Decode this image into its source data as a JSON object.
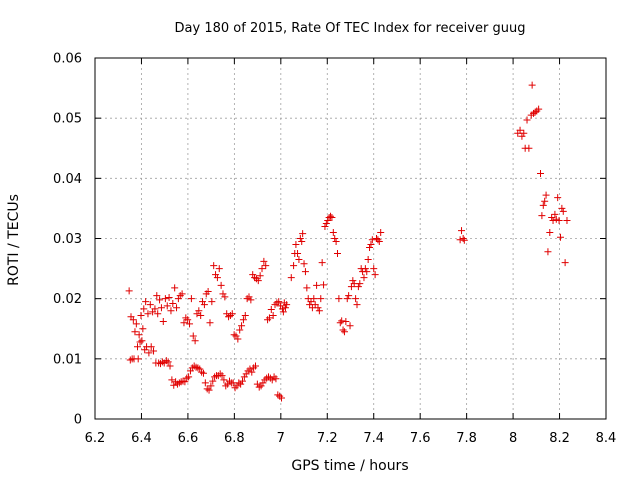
{
  "chart_data": {
    "type": "scatter",
    "title": "Day 180 of 2015, Rate Of TEC Index for receiver guug",
    "xlabel": "GPS time / hours",
    "ylabel": "ROTI / TECUs",
    "xlim": [
      6.2,
      8.4
    ],
    "ylim": [
      0,
      0.06
    ],
    "xticks": [
      "6.2",
      "6.4",
      "6.6",
      "6.8",
      "7",
      "7.2",
      "7.4",
      "7.6",
      "7.8",
      "8",
      "8.2",
      "8.4"
    ],
    "yticks": [
      "0",
      "0.01",
      "0.02",
      "0.03",
      "0.04",
      "0.05",
      "0.06"
    ],
    "grid": true,
    "marker": "plus",
    "color": "#e00000",
    "points": [
      [
        6.347,
        0.0213
      ],
      [
        6.352,
        0.0098
      ],
      [
        6.355,
        0.017
      ],
      [
        6.36,
        0.01
      ],
      [
        6.365,
        0.0165
      ],
      [
        6.368,
        0.01
      ],
      [
        6.372,
        0.0145
      ],
      [
        6.378,
        0.0158
      ],
      [
        6.383,
        0.012
      ],
      [
        6.386,
        0.01
      ],
      [
        6.39,
        0.014
      ],
      [
        6.394,
        0.0128
      ],
      [
        6.398,
        0.0172
      ],
      [
        6.402,
        0.013
      ],
      [
        6.406,
        0.015
      ],
      [
        6.41,
        0.0183
      ],
      [
        6.414,
        0.0115
      ],
      [
        6.418,
        0.0195
      ],
      [
        6.422,
        0.012
      ],
      [
        6.428,
        0.0175
      ],
      [
        6.432,
        0.011
      ],
      [
        6.438,
        0.019
      ],
      [
        6.442,
        0.012
      ],
      [
        6.448,
        0.0178
      ],
      [
        6.452,
        0.0113
      ],
      [
        6.458,
        0.0183
      ],
      [
        6.462,
        0.0093
      ],
      [
        6.466,
        0.0205
      ],
      [
        6.47,
        0.0175
      ],
      [
        6.474,
        0.0093
      ],
      [
        6.478,
        0.0198
      ],
      [
        6.482,
        0.0092
      ],
      [
        6.486,
        0.0185
      ],
      [
        6.49,
        0.0095
      ],
      [
        6.494,
        0.0162
      ],
      [
        6.498,
        0.0093
      ],
      [
        6.503,
        0.02
      ],
      [
        6.507,
        0.0097
      ],
      [
        6.511,
        0.0188
      ],
      [
        6.515,
        0.0095
      ],
      [
        6.519,
        0.0202
      ],
      [
        6.523,
        0.0088
      ],
      [
        6.527,
        0.018
      ],
      [
        6.531,
        0.0065
      ],
      [
        6.535,
        0.0192
      ],
      [
        6.539,
        0.0056
      ],
      [
        6.543,
        0.0218
      ],
      [
        6.547,
        0.0062
      ],
      [
        6.551,
        0.0185
      ],
      [
        6.555,
        0.0058
      ],
      [
        6.559,
        0.02
      ],
      [
        6.563,
        0.006
      ],
      [
        6.567,
        0.0205
      ],
      [
        6.571,
        0.0062
      ],
      [
        6.575,
        0.0208
      ],
      [
        6.579,
        0.0063
      ],
      [
        6.583,
        0.016
      ],
      [
        6.587,
        0.0062
      ],
      [
        6.591,
        0.0168
      ],
      [
        6.595,
        0.0068
      ],
      [
        6.599,
        0.0165
      ],
      [
        6.603,
        0.007
      ],
      [
        6.607,
        0.0158
      ],
      [
        6.611,
        0.008
      ],
      [
        6.615,
        0.02
      ],
      [
        6.619,
        0.0085
      ],
      [
        6.623,
        0.0138
      ],
      [
        6.627,
        0.0088
      ],
      [
        6.631,
        0.013
      ],
      [
        6.635,
        0.0086
      ],
      [
        6.639,
        0.0175
      ],
      [
        6.643,
        0.0085
      ],
      [
        6.647,
        0.018
      ],
      [
        6.651,
        0.0083
      ],
      [
        6.655,
        0.0172
      ],
      [
        6.659,
        0.0078
      ],
      [
        6.663,
        0.0195
      ],
      [
        6.667,
        0.0076
      ],
      [
        6.671,
        0.019
      ],
      [
        6.675,
        0.006
      ],
      [
        6.679,
        0.0208
      ],
      [
        6.683,
        0.005
      ],
      [
        6.687,
        0.0212
      ],
      [
        6.691,
        0.0048
      ],
      [
        6.695,
        0.016
      ],
      [
        6.699,
        0.0055
      ],
      [
        6.703,
        0.0195
      ],
      [
        6.707,
        0.0063
      ],
      [
        6.711,
        0.0255
      ],
      [
        6.715,
        0.007
      ],
      [
        6.719,
        0.024
      ],
      [
        6.723,
        0.0072
      ],
      [
        6.727,
        0.0235
      ],
      [
        6.731,
        0.0072
      ],
      [
        6.735,
        0.025
      ],
      [
        6.739,
        0.0075
      ],
      [
        6.743,
        0.0222
      ],
      [
        6.747,
        0.0072
      ],
      [
        6.751,
        0.0208
      ],
      [
        6.755,
        0.0065
      ],
      [
        6.759,
        0.0203
      ],
      [
        6.763,
        0.0055
      ],
      [
        6.767,
        0.0175
      ],
      [
        6.771,
        0.0058
      ],
      [
        6.775,
        0.017
      ],
      [
        6.779,
        0.0063
      ],
      [
        6.783,
        0.0172
      ],
      [
        6.787,
        0.006
      ],
      [
        6.791,
        0.0175
      ],
      [
        6.795,
        0.006
      ],
      [
        6.799,
        0.014
      ],
      [
        6.803,
        0.0052
      ],
      [
        6.807,
        0.0138
      ],
      [
        6.811,
        0.0055
      ],
      [
        6.815,
        0.0133
      ],
      [
        6.819,
        0.006
      ],
      [
        6.823,
        0.0148
      ],
      [
        6.827,
        0.0058
      ],
      [
        6.831,
        0.0155
      ],
      [
        6.835,
        0.0063
      ],
      [
        6.839,
        0.0165
      ],
      [
        6.843,
        0.007
      ],
      [
        6.847,
        0.0172
      ],
      [
        6.851,
        0.0075
      ],
      [
        6.855,
        0.02
      ],
      [
        6.859,
        0.008
      ],
      [
        6.863,
        0.0203
      ],
      [
        6.867,
        0.0083
      ],
      [
        6.871,
        0.0198
      ],
      [
        6.875,
        0.0078
      ],
      [
        6.879,
        0.024
      ],
      [
        6.883,
        0.0085
      ],
      [
        6.887,
        0.0235
      ],
      [
        6.891,
        0.0088
      ],
      [
        6.895,
        0.0233
      ],
      [
        6.899,
        0.0058
      ],
      [
        6.903,
        0.023
      ],
      [
        6.907,
        0.0053
      ],
      [
        6.911,
        0.0238
      ],
      [
        6.915,
        0.0055
      ],
      [
        6.919,
        0.025
      ],
      [
        6.923,
        0.006
      ],
      [
        6.927,
        0.0262
      ],
      [
        6.931,
        0.0065
      ],
      [
        6.935,
        0.0255
      ],
      [
        6.939,
        0.0068
      ],
      [
        6.943,
        0.0165
      ],
      [
        6.947,
        0.007
      ],
      [
        6.951,
        0.0168
      ],
      [
        6.955,
        0.0068
      ],
      [
        6.959,
        0.0182
      ],
      [
        6.963,
        0.0065
      ],
      [
        6.967,
        0.0172
      ],
      [
        6.971,
        0.007
      ],
      [
        6.975,
        0.019
      ],
      [
        6.979,
        0.0067
      ],
      [
        6.983,
        0.0193
      ],
      [
        6.987,
        0.004
      ],
      [
        6.991,
        0.0195
      ],
      [
        6.995,
        0.0038
      ],
      [
        6.999,
        0.0188
      ],
      [
        7.003,
        0.0035
      ],
      [
        7.007,
        0.0183
      ],
      [
        7.011,
        0.0178
      ],
      [
        7.015,
        0.0193
      ],
      [
        7.02,
        0.0185
      ],
      [
        7.025,
        0.019
      ],
      [
        7.045,
        0.0235
      ],
      [
        7.055,
        0.0255
      ],
      [
        7.06,
        0.0275
      ],
      [
        7.065,
        0.029
      ],
      [
        7.072,
        0.0275
      ],
      [
        7.078,
        0.0265
      ],
      [
        7.084,
        0.03
      ],
      [
        7.09,
        0.0295
      ],
      [
        7.094,
        0.0308
      ],
      [
        7.1,
        0.0258
      ],
      [
        7.106,
        0.0245
      ],
      [
        7.112,
        0.0218
      ],
      [
        7.118,
        0.02
      ],
      [
        7.124,
        0.019
      ],
      [
        7.13,
        0.0195
      ],
      [
        7.136,
        0.0185
      ],
      [
        7.142,
        0.02
      ],
      [
        7.148,
        0.019
      ],
      [
        7.154,
        0.0222
      ],
      [
        7.16,
        0.0185
      ],
      [
        7.166,
        0.018
      ],
      [
        7.172,
        0.02
      ],
      [
        7.178,
        0.026
      ],
      [
        7.184,
        0.0223
      ],
      [
        7.19,
        0.032
      ],
      [
        7.196,
        0.0325
      ],
      [
        7.202,
        0.033
      ],
      [
        7.208,
        0.0335
      ],
      [
        7.214,
        0.0337
      ],
      [
        7.22,
        0.0335
      ],
      [
        7.226,
        0.031
      ],
      [
        7.232,
        0.03
      ],
      [
        7.238,
        0.0295
      ],
      [
        7.244,
        0.0275
      ],
      [
        7.25,
        0.02
      ],
      [
        7.256,
        0.016
      ],
      [
        7.262,
        0.0163
      ],
      [
        7.268,
        0.0148
      ],
      [
        7.274,
        0.0145
      ],
      [
        7.28,
        0.0162
      ],
      [
        7.286,
        0.02
      ],
      [
        7.292,
        0.0205
      ],
      [
        7.298,
        0.0155
      ],
      [
        7.304,
        0.022
      ],
      [
        7.31,
        0.023
      ],
      [
        7.316,
        0.0225
      ],
      [
        7.322,
        0.02
      ],
      [
        7.328,
        0.019
      ],
      [
        7.334,
        0.022
      ],
      [
        7.34,
        0.0225
      ],
      [
        7.346,
        0.025
      ],
      [
        7.352,
        0.0245
      ],
      [
        7.358,
        0.0235
      ],
      [
        7.364,
        0.025
      ],
      [
        7.37,
        0.0245
      ],
      [
        7.376,
        0.0265
      ],
      [
        7.382,
        0.0285
      ],
      [
        7.388,
        0.029
      ],
      [
        7.394,
        0.0298
      ],
      [
        7.4,
        0.025
      ],
      [
        7.406,
        0.024
      ],
      [
        7.412,
        0.03
      ],
      [
        7.418,
        0.0298
      ],
      [
        7.424,
        0.0295
      ],
      [
        7.43,
        0.031
      ],
      [
        7.772,
        0.0298
      ],
      [
        7.778,
        0.0313
      ],
      [
        7.785,
        0.03
      ],
      [
        7.79,
        0.0297
      ],
      [
        8.02,
        0.0475
      ],
      [
        8.03,
        0.048
      ],
      [
        8.038,
        0.047
      ],
      [
        8.046,
        0.0475
      ],
      [
        8.052,
        0.045
      ],
      [
        8.06,
        0.0497
      ],
      [
        8.068,
        0.045
      ],
      [
        8.078,
        0.0505
      ],
      [
        8.082,
        0.0555
      ],
      [
        8.088,
        0.0508
      ],
      [
        8.095,
        0.051
      ],
      [
        8.102,
        0.0512
      ],
      [
        8.11,
        0.0515
      ],
      [
        8.118,
        0.0408
      ],
      [
        8.124,
        0.0338
      ],
      [
        8.13,
        0.0355
      ],
      [
        8.136,
        0.0362
      ],
      [
        8.142,
        0.0372
      ],
      [
        8.15,
        0.0278
      ],
      [
        8.158,
        0.031
      ],
      [
        8.166,
        0.0335
      ],
      [
        8.172,
        0.033
      ],
      [
        8.18,
        0.034
      ],
      [
        8.186,
        0.0332
      ],
      [
        8.192,
        0.0368
      ],
      [
        8.198,
        0.033
      ],
      [
        8.204,
        0.0302
      ],
      [
        8.21,
        0.035
      ],
      [
        8.216,
        0.0345
      ],
      [
        8.224,
        0.026
      ],
      [
        8.232,
        0.033
      ]
    ]
  }
}
